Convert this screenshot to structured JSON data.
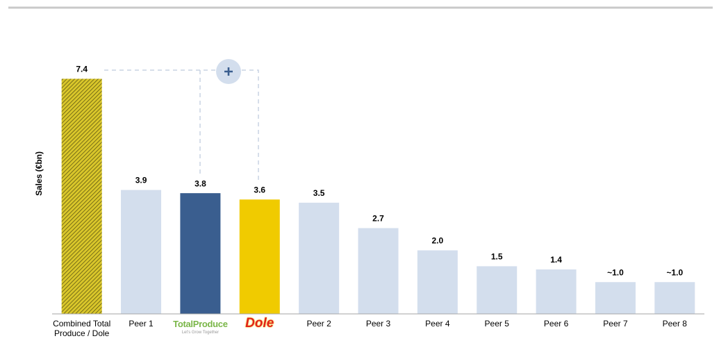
{
  "chart_data": {
    "type": "bar",
    "y_label": "Sales (€bn)",
    "categories": [
      "Combined Total Produce / Dole",
      "Peer 1",
      "TotalProduce",
      "Dole",
      "Peer 2",
      "Peer 3",
      "Peer 4",
      "Peer 5",
      "Peer 6",
      "Peer 7",
      "Peer 8"
    ],
    "logo_tagline": "Let's Grow Together",
    "values": [
      7.4,
      3.9,
      3.8,
      3.6,
      3.5,
      2.7,
      2.0,
      1.5,
      1.4,
      1.0,
      1.0
    ],
    "value_labels": [
      "7.4",
      "3.9",
      "3.8",
      "3.6",
      "3.5",
      "2.7",
      "2.0",
      "1.5",
      "1.4",
      "~1.0",
      "~1.0"
    ],
    "colors": [
      "#c4b21c",
      "#d3deed",
      "#3a5e8f",
      "#f0cb00",
      "#d3deed",
      "#d3deed",
      "#d3deed",
      "#d3deed",
      "#d3deed",
      "#d3deed",
      "#d3deed"
    ],
    "hatched": [
      true,
      false,
      false,
      false,
      false,
      false,
      false,
      false,
      false,
      false,
      false
    ],
    "ylim": [
      0,
      8
    ]
  }
}
